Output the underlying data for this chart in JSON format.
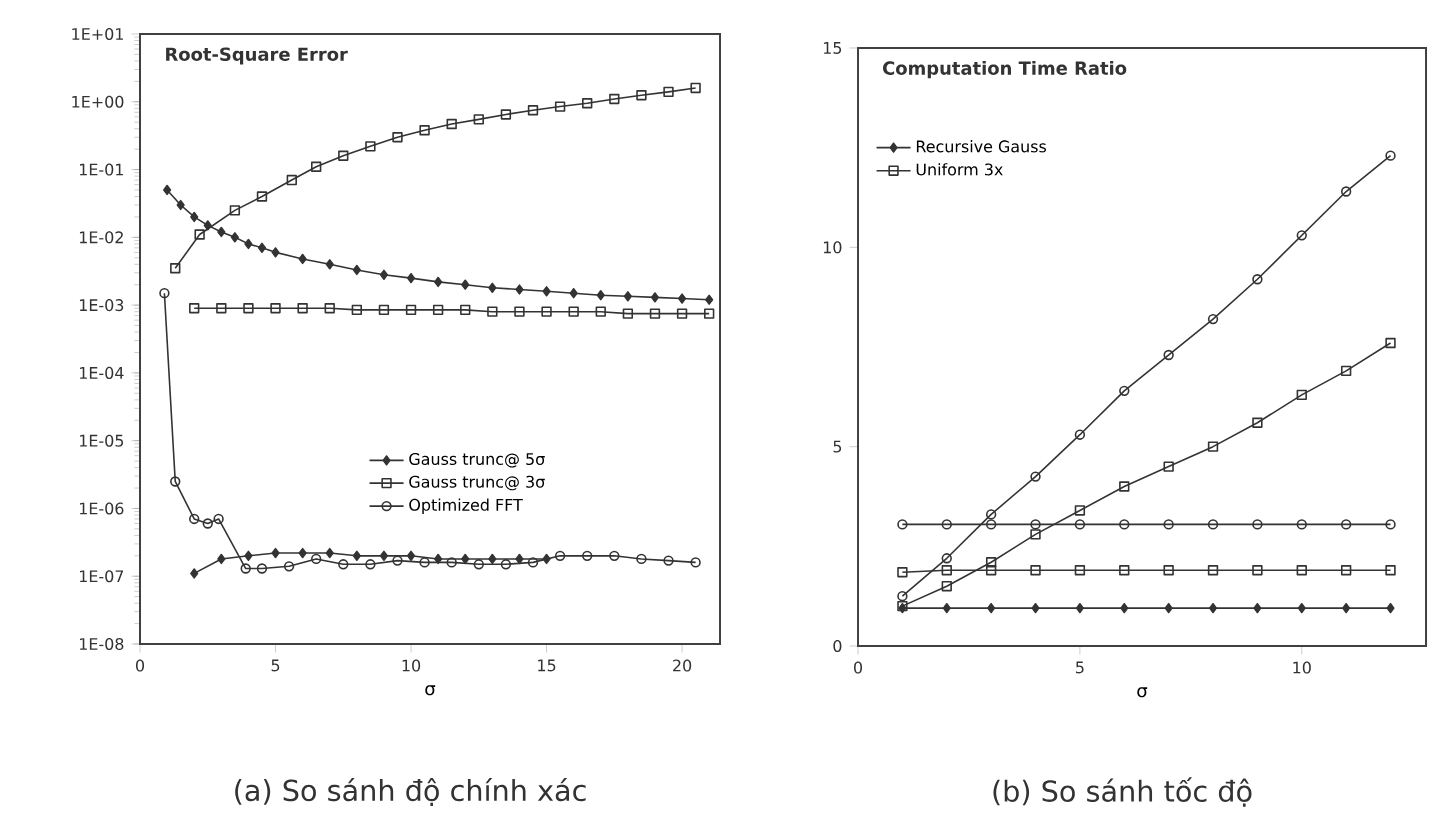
{
  "chart_data": [
    {
      "type": "line",
      "title": "Root-Square Error",
      "xlabel": "σ",
      "annotations": [
        "(a) So sánh độ chính xác"
      ],
      "log": "y",
      "xlim": [
        0,
        21.4
      ],
      "xticks": [
        0,
        5,
        10,
        15,
        20
      ],
      "ylim": [
        1e-08,
        10
      ],
      "yticks": [
        {
          "value": 1e-08,
          "label": "1E-08"
        },
        {
          "value": 1e-07,
          "label": "1E-07"
        },
        {
          "value": 1e-06,
          "label": "1E-06"
        },
        {
          "value": 1e-05,
          "label": "1E-05"
        },
        {
          "value": 0.0001,
          "label": "1E-04"
        },
        {
          "value": 0.001,
          "label": "1E-03"
        },
        {
          "value": 0.01,
          "label": "1E-02"
        },
        {
          "value": 0.1,
          "label": "1E-01"
        },
        {
          "value": 1,
          "label": "1E+00"
        },
        {
          "value": 10,
          "label": "1E+01"
        }
      ],
      "grid": false,
      "legend": "bottom",
      "line_style": "solid",
      "series": [
        {
          "name": "Gauss trunc@ 5σ",
          "color": "#333333",
          "marker": "diamond",
          "x": [
            2,
            3,
            4,
            5,
            6,
            7,
            8,
            9,
            10,
            11,
            12,
            13,
            14,
            15
          ],
          "values": [
            1.1e-07,
            1.8e-07,
            2e-07,
            2.2e-07,
            2.2e-07,
            2.2e-07,
            2e-07,
            2e-07,
            2e-07,
            1.8e-07,
            1.8e-07,
            1.8e-07,
            1.8e-07,
            1.8e-07
          ]
        },
        {
          "name": "Gauss trunc@ 3σ",
          "color": "#333333",
          "marker": "square",
          "x": [
            2,
            3,
            4,
            5,
            6,
            7,
            8,
            9,
            10,
            11,
            12,
            13,
            14,
            15,
            16,
            17,
            18,
            19,
            20,
            21
          ],
          "values": [
            0.0009,
            0.0009,
            0.0009,
            0.0009,
            0.0009,
            0.0009,
            0.00085,
            0.00085,
            0.00085,
            0.00085,
            0.00085,
            0.0008,
            0.0008,
            0.0008,
            0.0008,
            0.0008,
            0.00075,
            0.00075,
            0.00075,
            0.00075
          ]
        },
        {
          "name": "Optimized FFT",
          "color": "#333333",
          "marker": "circle",
          "x": [
            0.9,
            1.3,
            2,
            2.5,
            2.9,
            3.9,
            4.5,
            5.5,
            6.5,
            7.5,
            8.5,
            9.5,
            10.5,
            11.5,
            12.5,
            13.5,
            14.5,
            15.5,
            16.5,
            17.5,
            18.5,
            19.5,
            20.5
          ],
          "values": [
            0.0015,
            2.5e-06,
            7e-07,
            6e-07,
            7e-07,
            1.3e-07,
            1.3e-07,
            1.4e-07,
            1.8e-07,
            1.5e-07,
            1.5e-07,
            1.7e-07,
            1.6e-07,
            1.6e-07,
            1.5e-07,
            1.5e-07,
            1.6e-07,
            2e-07,
            2e-07,
            2e-07,
            1.8e-07,
            1.7e-07,
            1.6e-07
          ]
        },
        {
          "color": "#333333",
          "marker": "square",
          "x": [
            1.3,
            2.2,
            3.5,
            4.5,
            5.6,
            6.5,
            7.5,
            8.5,
            9.5,
            10.5,
            11.5,
            12.5,
            13.5,
            14.5,
            15.5,
            16.5,
            17.5,
            18.5,
            19.5,
            20.5
          ],
          "values": [
            0.0035,
            0.011,
            0.025,
            0.04,
            0.07,
            0.11,
            0.16,
            0.22,
            0.3,
            0.38,
            0.47,
            0.55,
            0.65,
            0.75,
            0.85,
            0.95,
            1.1,
            1.25,
            1.4,
            1.6
          ]
        },
        {
          "color": "#333333",
          "marker": "diamond",
          "x": [
            1,
            1.5,
            2,
            2.5,
            3,
            3.5,
            4,
            4.5,
            5,
            6,
            7,
            8,
            9,
            10,
            11,
            12,
            13,
            14,
            15,
            16,
            17,
            18,
            19,
            20,
            21
          ],
          "values": [
            0.05,
            0.03,
            0.02,
            0.015,
            0.012,
            0.01,
            0.008,
            0.007,
            0.006,
            0.0048,
            0.004,
            0.0033,
            0.0028,
            0.0025,
            0.0022,
            0.002,
            0.0018,
            0.0017,
            0.0016,
            0.0015,
            0.0014,
            0.00135,
            0.0013,
            0.00125,
            0.0012
          ]
        }
      ]
    },
    {
      "type": "line",
      "title": "Computation Time Ratio",
      "xlabel": "σ",
      "annotations": [
        "(b) So sánh tốc độ"
      ],
      "xlim": [
        0,
        12.8
      ],
      "xticks": [
        0,
        5,
        10
      ],
      "ylim": [
        0,
        15
      ],
      "yticks": [
        0,
        5,
        10,
        15
      ],
      "grid": false,
      "legend": "top left",
      "line_style": "solid",
      "series": [
        {
          "name": "Recursive Gauss",
          "color": "#333333",
          "marker": "diamond",
          "x": [
            1,
            2,
            3,
            4,
            5,
            6,
            7,
            8,
            9,
            10,
            11,
            12
          ],
          "values": [
            0.95,
            0.95,
            0.95,
            0.95,
            0.95,
            0.95,
            0.95,
            0.95,
            0.95,
            0.95,
            0.95,
            0.95
          ]
        },
        {
          "name": "Uniform 3x",
          "color": "#333333",
          "marker": "square",
          "x": [
            1,
            2,
            3,
            4,
            5,
            6,
            7,
            8,
            9,
            10,
            11,
            12
          ],
          "values": [
            1.85,
            1.9,
            1.9,
            1.9,
            1.9,
            1.9,
            1.9,
            1.9,
            1.9,
            1.9,
            1.9,
            1.9
          ]
        },
        {
          "color": "#333333",
          "marker": "circle",
          "x": [
            1,
            2,
            3,
            4,
            5,
            6,
            7,
            8,
            9,
            10,
            11,
            12
          ],
          "values": [
            1.25,
            2.2,
            3.3,
            4.25,
            5.3,
            6.4,
            7.3,
            8.2,
            9.2,
            10.3,
            11.4,
            12.3
          ]
        },
        {
          "color": "#333333",
          "marker": "square",
          "x": [
            1,
            2,
            3,
            4,
            5,
            6,
            7,
            8,
            9,
            10,
            11,
            12
          ],
          "values": [
            1.0,
            1.5,
            2.1,
            2.8,
            3.4,
            4.0,
            4.5,
            5.0,
            5.6,
            6.3,
            6.9,
            7.6
          ]
        },
        {
          "color": "#333333",
          "marker": "circle",
          "x": [
            1,
            2,
            3,
            4,
            5,
            6,
            7,
            8,
            9,
            10,
            11,
            12
          ],
          "values": [
            3.05,
            3.05,
            3.05,
            3.05,
            3.05,
            3.05,
            3.05,
            3.05,
            3.05,
            3.05,
            3.05,
            3.05
          ]
        }
      ]
    }
  ]
}
